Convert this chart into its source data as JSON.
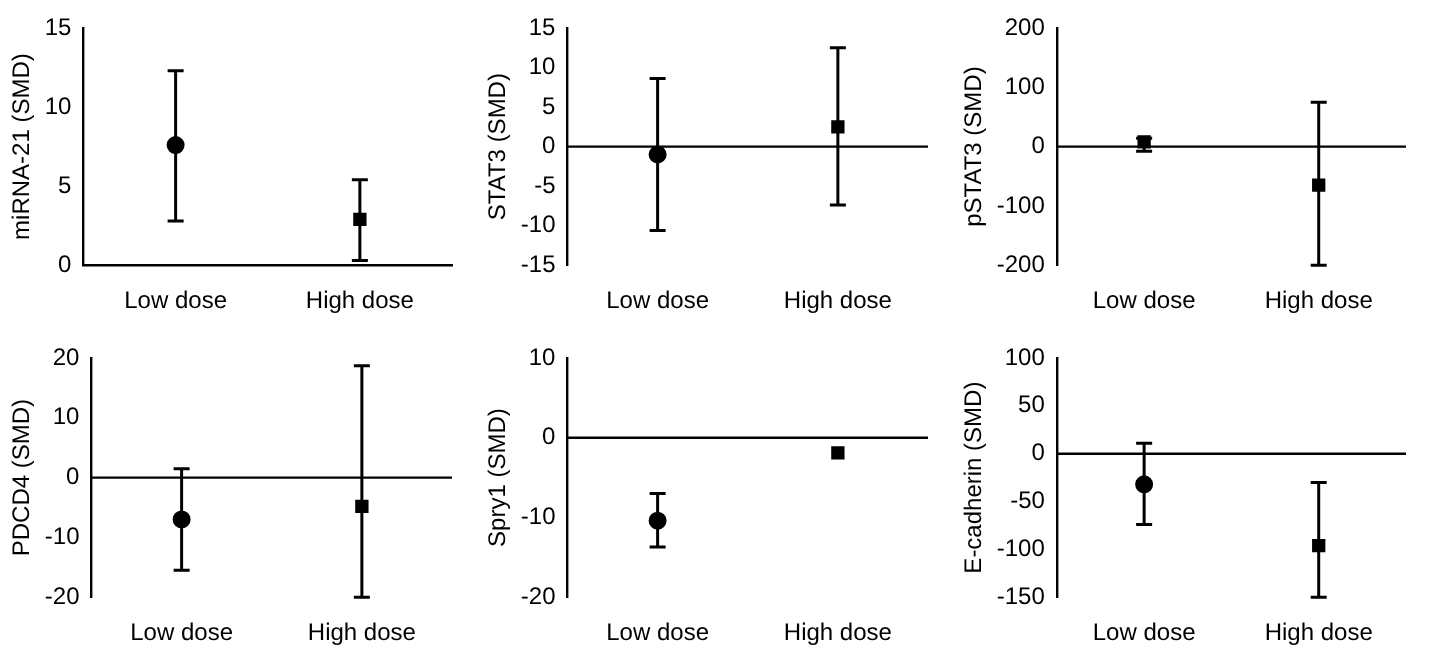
{
  "chart_data": [
    {
      "type": "scatter",
      "ylabel": "miRNA-21 (SMD)",
      "categories": [
        "Low dose",
        "High dose"
      ],
      "ylim": [
        0,
        15
      ],
      "yticks": [
        0,
        5,
        10,
        15
      ],
      "legend": false,
      "series": [
        {
          "color": "#000000",
          "marker": "circle",
          "values": [
            7.6,
            null
          ],
          "errors": [
            [
              2.8,
              12.3
            ],
            null
          ]
        },
        {
          "color": "#000000",
          "marker": "square",
          "values": [
            null,
            2.9
          ],
          "errors": [
            null,
            [
              0.3,
              5.4
            ]
          ]
        }
      ]
    },
    {
      "type": "scatter",
      "ylabel": "STAT3 (SMD)",
      "categories": [
        "Low dose",
        "High dose"
      ],
      "ylim": [
        -15,
        15
      ],
      "yticks": [
        -15,
        -10,
        -5,
        0,
        5,
        10,
        15
      ],
      "legend": false,
      "ref_lines": [
        {
          "axis": "y",
          "value": 0
        }
      ],
      "series": [
        {
          "color": "#000000",
          "marker": "circle",
          "values": [
            -1,
            null
          ],
          "errors": [
            [
              -10.6,
              8.6
            ],
            null
          ]
        },
        {
          "color": "#000000",
          "marker": "square",
          "values": [
            null,
            2.5
          ],
          "errors": [
            null,
            [
              -7.4,
              12.5
            ]
          ]
        }
      ]
    },
    {
      "type": "scatter",
      "ylabel": "pSTAT3 (SMD)",
      "categories": [
        "Low dose",
        "High dose"
      ],
      "ylim": [
        -200,
        200
      ],
      "yticks": [
        -200,
        -100,
        0,
        100,
        200
      ],
      "legend": false,
      "ref_lines": [
        {
          "axis": "y",
          "value": 0
        }
      ],
      "series": [
        {
          "color": "#000000",
          "marker": "square",
          "values": [
            8,
            null
          ],
          "errors": [
            [
              -8,
              14
            ],
            null
          ]
        },
        {
          "color": "#000000",
          "marker": "square",
          "values": [
            null,
            -65
          ],
          "errors": [
            null,
            [
              -200,
              75
            ]
          ]
        }
      ]
    },
    {
      "type": "scatter",
      "ylabel": "PDCD4 (SMD)",
      "categories": [
        "Low dose",
        "High dose"
      ],
      "ylim": [
        -20,
        20
      ],
      "yticks": [
        -20,
        -10,
        0,
        10,
        20
      ],
      "legend": false,
      "ref_lines": [
        {
          "axis": "y",
          "value": 0
        }
      ],
      "series": [
        {
          "color": "#000000",
          "marker": "circle",
          "values": [
            -7,
            null
          ],
          "errors": [
            [
              -15.5,
              1.5
            ],
            null
          ]
        },
        {
          "color": "#000000",
          "marker": "square",
          "values": [
            null,
            -4.8
          ],
          "errors": [
            null,
            [
              -20,
              18.7
            ]
          ]
        }
      ]
    },
    {
      "type": "scatter",
      "ylabel": "Spry1 (SMD)",
      "categories": [
        "Low dose",
        "High dose"
      ],
      "ylim": [
        -20,
        10
      ],
      "yticks": [
        -20,
        -10,
        0,
        10
      ],
      "legend": false,
      "ref_lines": [
        {
          "axis": "y",
          "value": 0
        }
      ],
      "series": [
        {
          "color": "#000000",
          "marker": "circle",
          "values": [
            -10.4,
            null
          ],
          "errors": [
            [
              -13.7,
              -7
            ],
            null
          ]
        },
        {
          "color": "#000000",
          "marker": "square",
          "values": [
            null,
            -1.9
          ],
          "errors": [
            null,
            null
          ]
        }
      ]
    },
    {
      "type": "scatter",
      "ylabel": "E-cadherin (SMD)",
      "categories": [
        "Low dose",
        "High dose"
      ],
      "ylim": [
        -150,
        100
      ],
      "yticks": [
        -150,
        -100,
        -50,
        0,
        50,
        100
      ],
      "legend": false,
      "ref_lines": [
        {
          "axis": "y",
          "value": 0
        }
      ],
      "series": [
        {
          "color": "#000000",
          "marker": "circle",
          "values": [
            -32,
            null
          ],
          "errors": [
            [
              -74,
              11
            ],
            null
          ]
        },
        {
          "color": "#000000",
          "marker": "square",
          "values": [
            null,
            -96
          ],
          "errors": [
            null,
            [
              -150,
              -30
            ]
          ]
        }
      ]
    }
  ]
}
